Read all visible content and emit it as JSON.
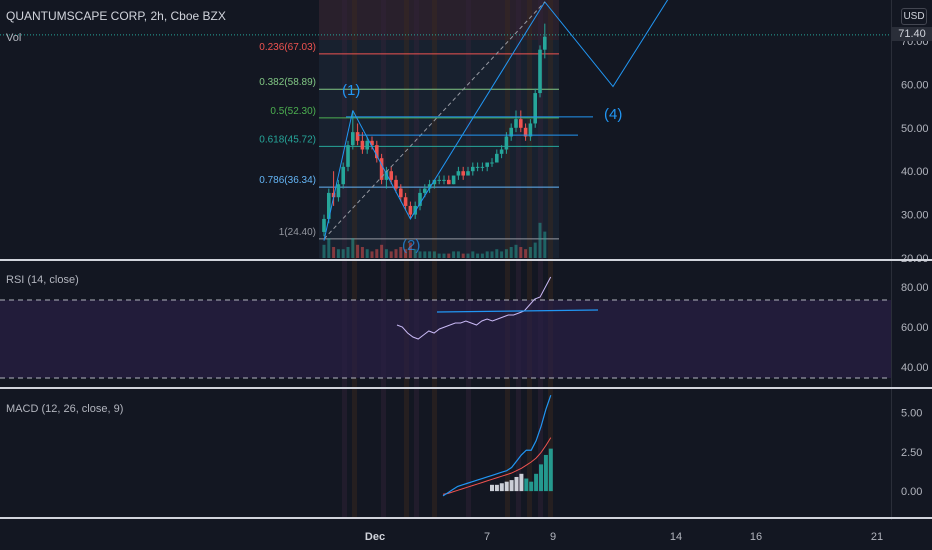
{
  "header": {
    "title": "QUANTUMSCAPE CORP, 2h, Cboe BZX",
    "volume_label": "Vol",
    "currency_button": "USD",
    "last_price": "71.40"
  },
  "rsi_pane": {
    "label": "RSI (14, close)"
  },
  "macd_pane": {
    "label": "MACD (12, 26, close, 9)"
  },
  "colors": {
    "background": "#131722",
    "up": "#26a69a",
    "down": "#ef5350",
    "trendline": "#2196f3",
    "rsi_line": "#c9b9f5",
    "rsi_band": "#7e57c2",
    "macd_line": "#2196f3",
    "signal_line": "#ef5350"
  },
  "chart_data": [
    {
      "type": "candlestick",
      "title": "QUANTUMSCAPE CORP, 2h, Cboe BZX",
      "y_ticks": [
        "20.00",
        "30.00",
        "40.00",
        "50.00",
        "60.00",
        "70.00"
      ],
      "x_ticks": [
        "Dec",
        "7",
        "9",
        "14",
        "16",
        "21"
      ],
      "ylim": [
        20,
        79
      ],
      "last_price": 71.4,
      "candles": [
        {
          "o": 26,
          "h": 30,
          "l": 25,
          "c": 29
        },
        {
          "o": 29,
          "h": 36,
          "l": 28,
          "c": 35
        },
        {
          "o": 35,
          "h": 40,
          "l": 32,
          "c": 34
        },
        {
          "o": 34,
          "h": 38,
          "l": 33,
          "c": 37
        },
        {
          "o": 37,
          "h": 42,
          "l": 36,
          "c": 41
        },
        {
          "o": 41,
          "h": 47,
          "l": 40,
          "c": 46
        },
        {
          "o": 46,
          "h": 54,
          "l": 45,
          "c": 49
        },
        {
          "o": 49,
          "h": 51,
          "l": 46,
          "c": 47
        },
        {
          "o": 47,
          "h": 49,
          "l": 44,
          "c": 45
        },
        {
          "o": 45,
          "h": 48,
          "l": 44,
          "c": 47
        },
        {
          "o": 47,
          "h": 48,
          "l": 45,
          "c": 46
        },
        {
          "o": 46,
          "h": 47,
          "l": 42,
          "c": 43
        },
        {
          "o": 43,
          "h": 44,
          "l": 37,
          "c": 38
        },
        {
          "o": 38,
          "h": 41,
          "l": 36,
          "c": 40
        },
        {
          "o": 40,
          "h": 41,
          "l": 37,
          "c": 38
        },
        {
          "o": 38,
          "h": 39,
          "l": 35,
          "c": 36
        },
        {
          "o": 36,
          "h": 37,
          "l": 33,
          "c": 34
        },
        {
          "o": 34,
          "h": 35,
          "l": 31,
          "c": 32
        },
        {
          "o": 32,
          "h": 33,
          "l": 29,
          "c": 30
        },
        {
          "o": 30,
          "h": 33,
          "l": 29,
          "c": 32
        },
        {
          "o": 32,
          "h": 36,
          "l": 31,
          "c": 35
        },
        {
          "o": 35,
          "h": 37,
          "l": 34,
          "c": 36
        },
        {
          "o": 36,
          "h": 38,
          "l": 35,
          "c": 37
        },
        {
          "o": 37,
          "h": 38,
          "l": 36,
          "c": 38
        },
        {
          "o": 38,
          "h": 39,
          "l": 37,
          "c": 38
        },
        {
          "o": 38,
          "h": 39,
          "l": 37,
          "c": 38
        },
        {
          "o": 38,
          "h": 39,
          "l": 37,
          "c": 37
        },
        {
          "o": 37,
          "h": 39,
          "l": 37,
          "c": 39
        },
        {
          "o": 39,
          "h": 41,
          "l": 38,
          "c": 40
        },
        {
          "o": 40,
          "h": 41,
          "l": 38,
          "c": 39
        },
        {
          "o": 39,
          "h": 41,
          "l": 39,
          "c": 40
        },
        {
          "o": 40,
          "h": 42,
          "l": 39,
          "c": 41
        },
        {
          "o": 41,
          "h": 42,
          "l": 40,
          "c": 41
        },
        {
          "o": 41,
          "h": 42,
          "l": 40,
          "c": 41
        },
        {
          "o": 41,
          "h": 42,
          "l": 40,
          "c": 42
        },
        {
          "o": 42,
          "h": 43,
          "l": 41,
          "c": 42
        },
        {
          "o": 42,
          "h": 45,
          "l": 42,
          "c": 44
        },
        {
          "o": 44,
          "h": 46,
          "l": 43,
          "c": 45
        },
        {
          "o": 45,
          "h": 49,
          "l": 44,
          "c": 48
        },
        {
          "o": 48,
          "h": 51,
          "l": 47,
          "c": 50
        },
        {
          "o": 50,
          "h": 54,
          "l": 49,
          "c": 52
        },
        {
          "o": 52,
          "h": 54,
          "l": 49,
          "c": 50
        },
        {
          "o": 50,
          "h": 51,
          "l": 47,
          "c": 48
        },
        {
          "o": 48,
          "h": 52,
          "l": 47,
          "c": 51
        },
        {
          "o": 51,
          "h": 59,
          "l": 50,
          "c": 58
        },
        {
          "o": 58,
          "h": 69,
          "l": 57,
          "c": 68
        },
        {
          "o": 68,
          "h": 74,
          "l": 66,
          "c": 71
        }
      ],
      "volume": [
        6,
        9,
        5,
        4,
        4,
        5,
        9,
        6,
        5,
        4,
        3,
        4,
        6,
        4,
        3,
        4,
        5,
        4,
        7,
        4,
        3,
        3,
        3,
        3,
        2,
        2,
        2,
        3,
        3,
        2,
        2,
        3,
        2,
        2,
        3,
        3,
        4,
        3,
        4,
        5,
        6,
        5,
        4,
        5,
        7,
        16,
        12
      ],
      "fibonacci": [
        {
          "label": "0.236(67.03)",
          "price": 67.03,
          "color": "#ef5350"
        },
        {
          "label": "0.382(58.89)",
          "price": 58.89,
          "color": "#81c784"
        },
        {
          "label": "0.5(52.30)",
          "price": 52.3,
          "color": "#4caf50"
        },
        {
          "label": "0.618(45.72)",
          "price": 45.72,
          "color": "#26a69a"
        },
        {
          "label": "0.786(36.34)",
          "price": 36.34,
          "color": "#64b5f6"
        },
        {
          "label": "1(24.40)",
          "price": 24.4,
          "color": "#9598a1"
        }
      ],
      "wave_labels": [
        "(1)",
        "(4)",
        "(2)"
      ]
    },
    {
      "type": "line",
      "title": "RSI (14, close)",
      "y_ticks": [
        "40.00",
        "60.00",
        "80.00"
      ],
      "ylim": [
        31,
        86
      ],
      "band": [
        30,
        70
      ],
      "values": [
        61,
        60,
        57,
        55,
        54,
        56,
        58,
        57,
        59,
        60,
        61,
        62,
        62,
        63,
        62,
        61,
        63,
        64,
        63,
        64,
        65,
        66,
        66,
        67,
        68,
        71,
        74,
        75,
        80,
        85
      ]
    },
    {
      "type": "line",
      "title": "MACD (12, 26, close, 9)",
      "y_ticks": [
        "0.00",
        "2.50",
        "5.00"
      ],
      "ylim": [
        -1.2,
        6.3
      ],
      "series": [
        {
          "values": [
            -0.3,
            -0.1,
            0.1,
            0.3,
            0.4,
            0.5,
            0.6,
            0.7,
            0.8,
            0.9,
            1.0,
            1.1,
            1.2,
            1.3,
            1.5,
            1.9,
            2.3,
            2.6,
            2.6,
            3.2,
            4.1,
            5.2,
            6.1
          ]
        },
        {
          "values": [
            -0.2,
            -0.15,
            -0.05,
            0.05,
            0.15,
            0.25,
            0.35,
            0.45,
            0.55,
            0.65,
            0.75,
            0.85,
            0.95,
            1.05,
            1.15,
            1.3,
            1.45,
            1.65,
            1.85,
            2.1,
            2.45,
            2.9,
            3.4
          ]
        }
      ],
      "histogram": [
        0,
        0,
        0,
        0,
        0,
        0,
        0,
        0,
        0,
        0,
        0.4,
        0.4,
        0.5,
        0.6,
        0.7,
        0.9,
        1.1,
        0.8,
        0.6,
        1.1,
        1.7,
        2.3,
        2.7
      ]
    }
  ]
}
